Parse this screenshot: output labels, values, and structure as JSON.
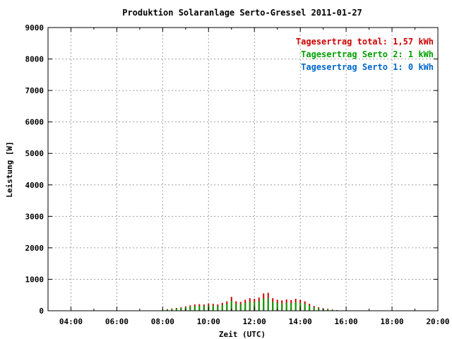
{
  "chart_data": {
    "type": "bar",
    "title": "Produktion Solaranlage Serto-Gressel 2011-01-27",
    "xlabel": "Zeit (UTC)",
    "ylabel": "Leistung [W]",
    "xlim": [
      3.0,
      20.0
    ],
    "ylim": [
      0,
      9000
    ],
    "x_ticks": [
      "04:00",
      "06:00",
      "08:00",
      "10:00",
      "12:00",
      "14:00",
      "16:00",
      "18:00",
      "20:00"
    ],
    "y_ticks": [
      "0",
      "1000",
      "2000",
      "3000",
      "4000",
      "5000",
      "6000",
      "7000",
      "8000",
      "9000"
    ],
    "grid": true,
    "legend_position": "top-right",
    "legend": [
      {
        "label": "Tagesertrag total:",
        "value": "1,57 kWh",
        "color": "#cc0000"
      },
      {
        "label": "Tagesertrag Serto 2:",
        "value": "1 kWh",
        "color": "#00a000"
      },
      {
        "label": "Tagesertrag Serto 1:",
        "value": "0 kWh",
        "color": "#0066cc"
      }
    ],
    "colors": {
      "total": "#cc0000",
      "serto2": "#00a000",
      "serto1": "#0066cc"
    },
    "x": [
      8.0,
      8.2,
      8.4,
      8.6,
      8.8,
      9.0,
      9.2,
      9.4,
      9.6,
      9.8,
      10.0,
      10.2,
      10.4,
      10.6,
      10.8,
      11.0,
      11.2,
      11.4,
      11.6,
      11.8,
      12.0,
      12.2,
      12.4,
      12.6,
      12.8,
      13.0,
      13.2,
      13.4,
      13.6,
      13.8,
      14.0,
      14.2,
      14.4,
      14.6,
      14.8,
      15.0,
      15.2,
      15.4,
      15.6
    ],
    "series": [
      {
        "key": "total",
        "values": [
          30,
          50,
          70,
          90,
          110,
          140,
          170,
          200,
          210,
          200,
          230,
          220,
          200,
          250,
          300,
          440,
          300,
          280,
          350,
          400,
          380,
          420,
          550,
          570,
          400,
          350,
          330,
          360,
          340,
          380,
          350,
          300,
          220,
          150,
          110,
          80,
          60,
          40,
          20
        ]
      },
      {
        "key": "serto2",
        "values": [
          25,
          40,
          55,
          70,
          90,
          110,
          130,
          150,
          160,
          150,
          170,
          165,
          150,
          185,
          220,
          320,
          220,
          205,
          255,
          290,
          275,
          300,
          390,
          400,
          285,
          250,
          235,
          255,
          240,
          270,
          250,
          215,
          160,
          110,
          80,
          60,
          45,
          30,
          15
        ]
      }
    ]
  }
}
